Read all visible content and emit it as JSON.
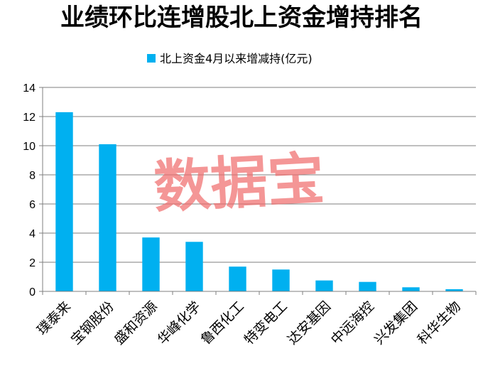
{
  "chart_data": {
    "type": "bar",
    "title": "业绩环比连增股北上资金增持排名",
    "legend": "北上资金4月以来增减持(亿元)",
    "legend_position": "top",
    "categories": [
      "璞泰来",
      "宝钢股份",
      "盛和资源",
      "华峰化学",
      "鲁西化工",
      "特变电工",
      "达安基因",
      "中远海控",
      "兴发集团",
      "科华生物"
    ],
    "values": [
      12.3,
      10.1,
      3.7,
      3.4,
      1.7,
      1.5,
      0.75,
      0.65,
      0.28,
      0.15
    ],
    "ylim": [
      0,
      14
    ],
    "yticks": [
      0,
      2,
      4,
      6,
      8,
      10,
      12,
      14
    ],
    "grid": true,
    "bar_color": "#00B0F0",
    "grid_color": "#7f7f7f"
  },
  "watermark": "数据宝"
}
